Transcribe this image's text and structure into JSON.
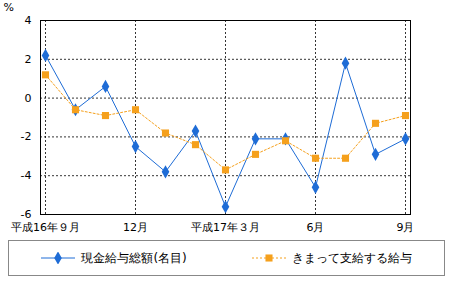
{
  "chart_data": {
    "type": "line",
    "ylabel": "%",
    "categories": [
      "平成16年９月",
      null,
      null,
      "12月",
      null,
      null,
      "平成17年３月",
      null,
      null,
      "6月",
      null,
      null,
      "9月"
    ],
    "series": [
      {
        "name": "現金給与総額(名目)",
        "color": "#1e6cd6",
        "marker": "diamond",
        "line_style": "solid",
        "values": [
          2.2,
          -0.6,
          0.6,
          -2.5,
          -3.8,
          -1.7,
          -5.6,
          -2.1,
          -2.1,
          -4.6,
          1.8,
          -2.9,
          -2.1
        ]
      },
      {
        "name": "きまって支給する給与",
        "color": "#f5a01c",
        "marker": "square",
        "line_style": "dotted",
        "values": [
          1.2,
          -0.6,
          -0.9,
          -0.6,
          -1.8,
          -2.4,
          -3.7,
          -2.9,
          -2.2,
          -3.1,
          -3.1,
          -1.3,
          -0.9
        ]
      }
    ],
    "ylim": [
      -6,
      4
    ],
    "yticks": [
      -6,
      -4,
      -2,
      0,
      2,
      4
    ],
    "grid": true,
    "legend": "bottom"
  }
}
